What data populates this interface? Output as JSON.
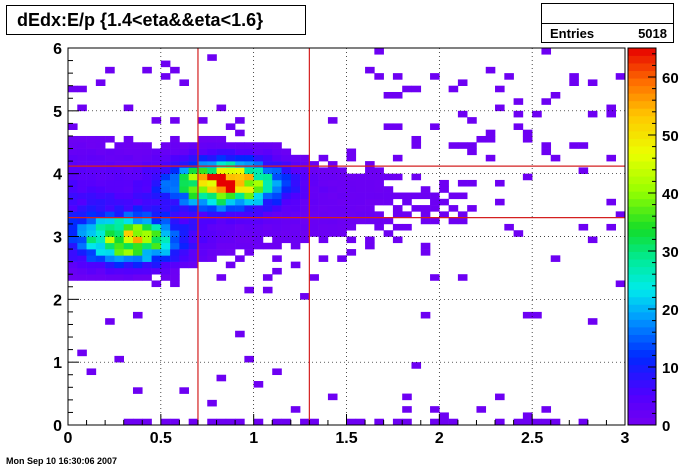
{
  "title": "dEdx:E/p {1.4<eta&&eta<1.6}",
  "stats": {
    "label": "Entries",
    "value": "5018"
  },
  "datestamp": "Mon Sep 10 16:30:06 2007",
  "chart_data": {
    "type": "heatmap",
    "title": "dEdx:E/p {1.4<eta&&eta<1.6}",
    "xlabel": "",
    "ylabel": "",
    "xlim": [
      0,
      3
    ],
    "ylim": [
      0,
      6
    ],
    "x_bins": 60,
    "y_bins": 60,
    "x_ticks": [
      "0",
      "0.5",
      "1",
      "1.5",
      "2",
      "2.5",
      "3"
    ],
    "y_ticks": [
      "0",
      "1",
      "2",
      "3",
      "4",
      "5",
      "6"
    ],
    "z_range": [
      0,
      65
    ],
    "palette_ticks": [
      "0",
      "10",
      "20",
      "30",
      "40",
      "50",
      "60"
    ],
    "grid": true,
    "entries": 5018,
    "clusters": [
      {
        "name": "main",
        "x": 0.85,
        "y": 3.85,
        "sx": 0.17,
        "sy": 0.22,
        "peak": 60
      },
      {
        "name": "secondary",
        "x": 0.32,
        "y": 2.95,
        "sx": 0.17,
        "sy": 0.23,
        "peak": 44
      }
    ],
    "cut_lines": [
      {
        "orientation": "vertical",
        "value": 0.7
      },
      {
        "orientation": "vertical",
        "value": 1.3
      },
      {
        "orientation": "horizontal",
        "value": 3.3
      },
      {
        "orientation": "horizontal",
        "value": 4.12
      }
    ],
    "line_color": "#d42020"
  }
}
